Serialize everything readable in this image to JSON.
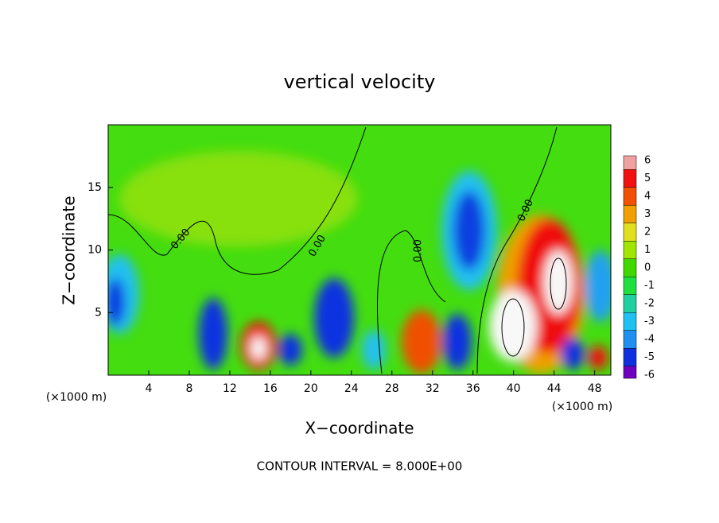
{
  "chart_data": {
    "type": "contour",
    "title": "vertical velocity",
    "x_label": "X−coordinate",
    "y_label": "Z−coordinate",
    "x_unit": "(×1000 m)",
    "x_unit_right": "(×1000 m)",
    "footer": "CONTOUR INTERVAL = 8.000E+00",
    "contour_labels": [
      "0.00",
      "0.00",
      "0.00",
      "0.00"
    ],
    "xlim": [
      0,
      49.6
    ],
    "ylim": [
      0,
      20
    ],
    "xticks": [
      4,
      8,
      12,
      16,
      20,
      24,
      28,
      32,
      36,
      40,
      44,
      48
    ],
    "yticks": [
      5,
      10,
      15
    ],
    "colorbar": {
      "ticks": [
        6,
        5,
        4,
        3,
        2,
        1,
        0,
        -1,
        -2,
        -3,
        -4,
        -5,
        -6
      ],
      "colors": [
        "#f0a0a0",
        "#f01010",
        "#f05000",
        "#f0a000",
        "#e0e020",
        "#a0e600",
        "#40d800",
        "#20e040",
        "#20d0a0",
        "#20c0f0",
        "#2090f0",
        "#1030e0",
        "#7000c0"
      ]
    }
  }
}
